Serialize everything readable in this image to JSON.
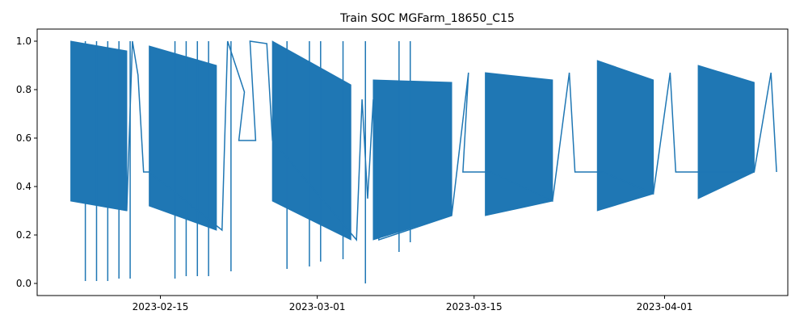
{
  "chart_data": {
    "type": "line",
    "title": "Train SOC MGFarm_18650_C15",
    "xlabel": "",
    "ylabel": "",
    "x_type": "date",
    "xlim": [
      "2023-02-04",
      "2023-04-12"
    ],
    "ylim": [
      -0.05,
      1.05
    ],
    "x_ticks": [
      "2023-02-15",
      "2023-03-01",
      "2023-03-15",
      "2023-04-01"
    ],
    "y_ticks": [
      0.0,
      0.2,
      0.4,
      0.6,
      0.8,
      1.0
    ],
    "y_tick_labels": [
      "0.0",
      "0.2",
      "0.4",
      "0.6",
      "0.8",
      "1.0"
    ],
    "grid": false,
    "legend": "none",
    "color": "#1f77b4",
    "series": [
      {
        "name": "",
        "color": "#1f77b4",
        "blocks": [
          {
            "start": "2023-02-07",
            "end": "2023-02-12",
            "top_start": 1.0,
            "top_end": 0.96,
            "bot_start": 0.34,
            "bot_end": 0.3
          },
          {
            "start": "2023-02-14",
            "end": "2023-02-20",
            "top_start": 0.98,
            "top_end": 0.9,
            "bot_start": 0.32,
            "bot_end": 0.22
          },
          {
            "start": "2023-02-25",
            "end": "2023-03-04",
            "top_start": 1.0,
            "top_end": 0.82,
            "bot_start": 0.34,
            "bot_end": 0.18
          },
          {
            "start": "2023-03-06",
            "end": "2023-03-13",
            "top_start": 0.84,
            "top_end": 0.83,
            "bot_start": 0.18,
            "bot_end": 0.28
          },
          {
            "start": "2023-03-16",
            "end": "2023-03-22",
            "top_start": 0.87,
            "top_end": 0.84,
            "bot_start": 0.28,
            "bot_end": 0.34
          },
          {
            "start": "2023-03-26",
            "end": "2023-03-31",
            "top_start": 0.92,
            "top_end": 0.84,
            "bot_start": 0.3,
            "bot_end": 0.37
          },
          {
            "start": "2023-04-04",
            "end": "2023-04-09",
            "top_start": 0.9,
            "top_end": 0.83,
            "bot_start": 0.35,
            "bot_end": 0.46
          }
        ],
        "spikes_to": [
          [
            "2023-02-08",
            0.01
          ],
          [
            "2023-02-09",
            0.01
          ],
          [
            "2023-02-10",
            0.01
          ],
          [
            "2023-02-11",
            0.02
          ],
          [
            "2023-02-12",
            0.02
          ],
          [
            "2023-02-16",
            0.02
          ],
          [
            "2023-02-17",
            0.03
          ],
          [
            "2023-02-18",
            0.03
          ],
          [
            "2023-02-19",
            0.03
          ],
          [
            "2023-02-21",
            0.05
          ],
          [
            "2023-02-26",
            0.06
          ],
          [
            "2023-02-28",
            0.07
          ],
          [
            "2023-03-01",
            0.09
          ],
          [
            "2023-03-03",
            0.1
          ],
          [
            "2023-03-05",
            0.0
          ],
          [
            "2023-03-08",
            0.13
          ],
          [
            "2023-03-09",
            0.17
          ]
        ],
        "transitions": [
          [
            "2023-02-12",
            0.3
          ],
          [
            "2023-02-12",
            1.0
          ],
          [
            "2023-02-13",
            0.86
          ],
          [
            "2023-02-13",
            0.46
          ],
          [
            "2023-02-14",
            0.46
          ],
          [
            "2023-02-20",
            0.22
          ],
          [
            "2023-02-21",
            1.0
          ],
          [
            "2023-02-22",
            0.79
          ],
          [
            "2023-02-22",
            0.59
          ],
          [
            "2023-02-23",
            0.59
          ],
          [
            "2023-02-23",
            1.0
          ],
          [
            "2023-02-24",
            0.99
          ],
          [
            "2023-02-25",
            0.59
          ],
          [
            "2023-03-04",
            0.18
          ],
          [
            "2023-03-05",
            0.76
          ],
          [
            "2023-03-05",
            0.35
          ],
          [
            "2023-03-06",
            0.76
          ],
          [
            "2023-03-06",
            0.18
          ],
          [
            "2023-03-13",
            0.28
          ],
          [
            "2023-03-14",
            0.87
          ],
          [
            "2023-03-14",
            0.46
          ],
          [
            "2023-03-16",
            0.46
          ],
          [
            "2023-03-22",
            0.34
          ],
          [
            "2023-03-23",
            0.87
          ],
          [
            "2023-03-24",
            0.46
          ],
          [
            "2023-03-26",
            0.46
          ],
          [
            "2023-03-31",
            0.37
          ],
          [
            "2023-04-01",
            0.87
          ],
          [
            "2023-04-02",
            0.46
          ],
          [
            "2023-04-04",
            0.46
          ],
          [
            "2023-04-09",
            0.46
          ],
          [
            "2023-04-10",
            0.87
          ],
          [
            "2023-04-11",
            0.46
          ]
        ]
      }
    ]
  }
}
